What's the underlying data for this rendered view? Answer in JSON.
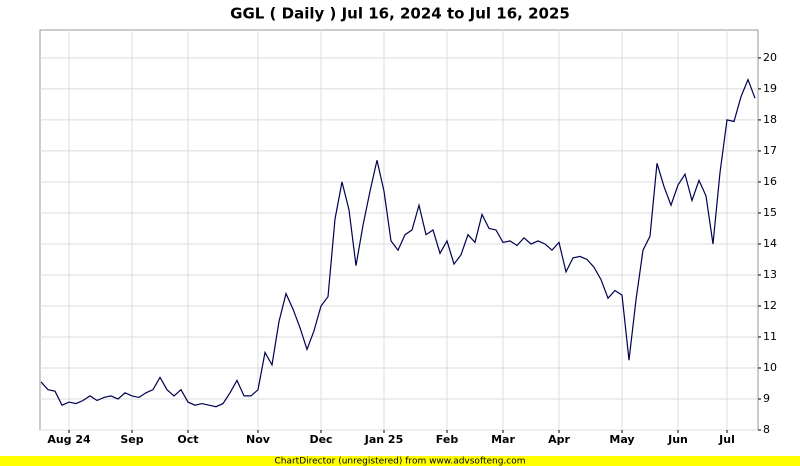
{
  "chart_data": {
    "type": "line",
    "title": "GGL ( Daily ) Jul 16, 2024 to Jul 16, 2025",
    "credit": "ChartDirector (unregistered) from www.advsofteng.com",
    "categories": [
      null,
      null,
      null,
      null,
      "Aug 24",
      null,
      null,
      null,
      null,
      null,
      null,
      null,
      null,
      "Sep",
      null,
      null,
      null,
      null,
      null,
      null,
      null,
      "Oct",
      null,
      null,
      null,
      null,
      null,
      null,
      null,
      null,
      null,
      "Nov",
      null,
      null,
      null,
      null,
      null,
      null,
      null,
      null,
      "Dec",
      null,
      null,
      null,
      null,
      null,
      null,
      null,
      null,
      "Jan 25",
      null,
      null,
      null,
      null,
      null,
      null,
      null,
      null,
      "Feb",
      null,
      null,
      null,
      null,
      null,
      null,
      null,
      "Mar",
      null,
      null,
      null,
      null,
      null,
      null,
      null,
      "Apr",
      null,
      null,
      null,
      null,
      null,
      null,
      null,
      null,
      "May",
      null,
      null,
      null,
      null,
      null,
      null,
      null,
      "Jun",
      null,
      null,
      null,
      null,
      null,
      null,
      "Jul",
      null,
      null,
      null,
      null
    ],
    "values": [
      9.55,
      9.3,
      9.25,
      8.8,
      8.9,
      8.85,
      8.95,
      9.1,
      8.95,
      9.05,
      9.1,
      9.0,
      9.2,
      9.1,
      9.05,
      9.2,
      9.3,
      9.7,
      9.3,
      9.1,
      9.3,
      8.9,
      8.8,
      8.85,
      8.8,
      8.75,
      8.85,
      9.2,
      9.6,
      9.1,
      9.1,
      9.3,
      10.5,
      10.1,
      11.5,
      12.4,
      11.9,
      11.3,
      10.6,
      11.2,
      12.0,
      12.3,
      14.8,
      16.0,
      15.1,
      13.3,
      14.6,
      15.7,
      16.7,
      15.7,
      14.1,
      13.8,
      14.3,
      14.45,
      15.25,
      14.3,
      14.45,
      13.7,
      14.1,
      13.35,
      13.65,
      14.3,
      14.05,
      14.95,
      14.5,
      14.45,
      14.05,
      14.1,
      13.95,
      14.2,
      14.0,
      14.1,
      14.0,
      13.8,
      14.05,
      13.1,
      13.55,
      13.6,
      13.5,
      13.25,
      12.85,
      12.25,
      12.5,
      12.35,
      10.25,
      12.2,
      13.8,
      14.25,
      16.6,
      15.85,
      15.25,
      15.9,
      16.25,
      15.4,
      16.05,
      15.55,
      14.0,
      16.3,
      18.0,
      17.95,
      18.75,
      19.3,
      18.7
    ],
    "color": "#000050",
    "ylim": [
      8,
      20.9
    ],
    "yticks": [
      8,
      9,
      10,
      11,
      12,
      13,
      14,
      15,
      16,
      17,
      18,
      19,
      20
    ],
    "grid": true
  }
}
